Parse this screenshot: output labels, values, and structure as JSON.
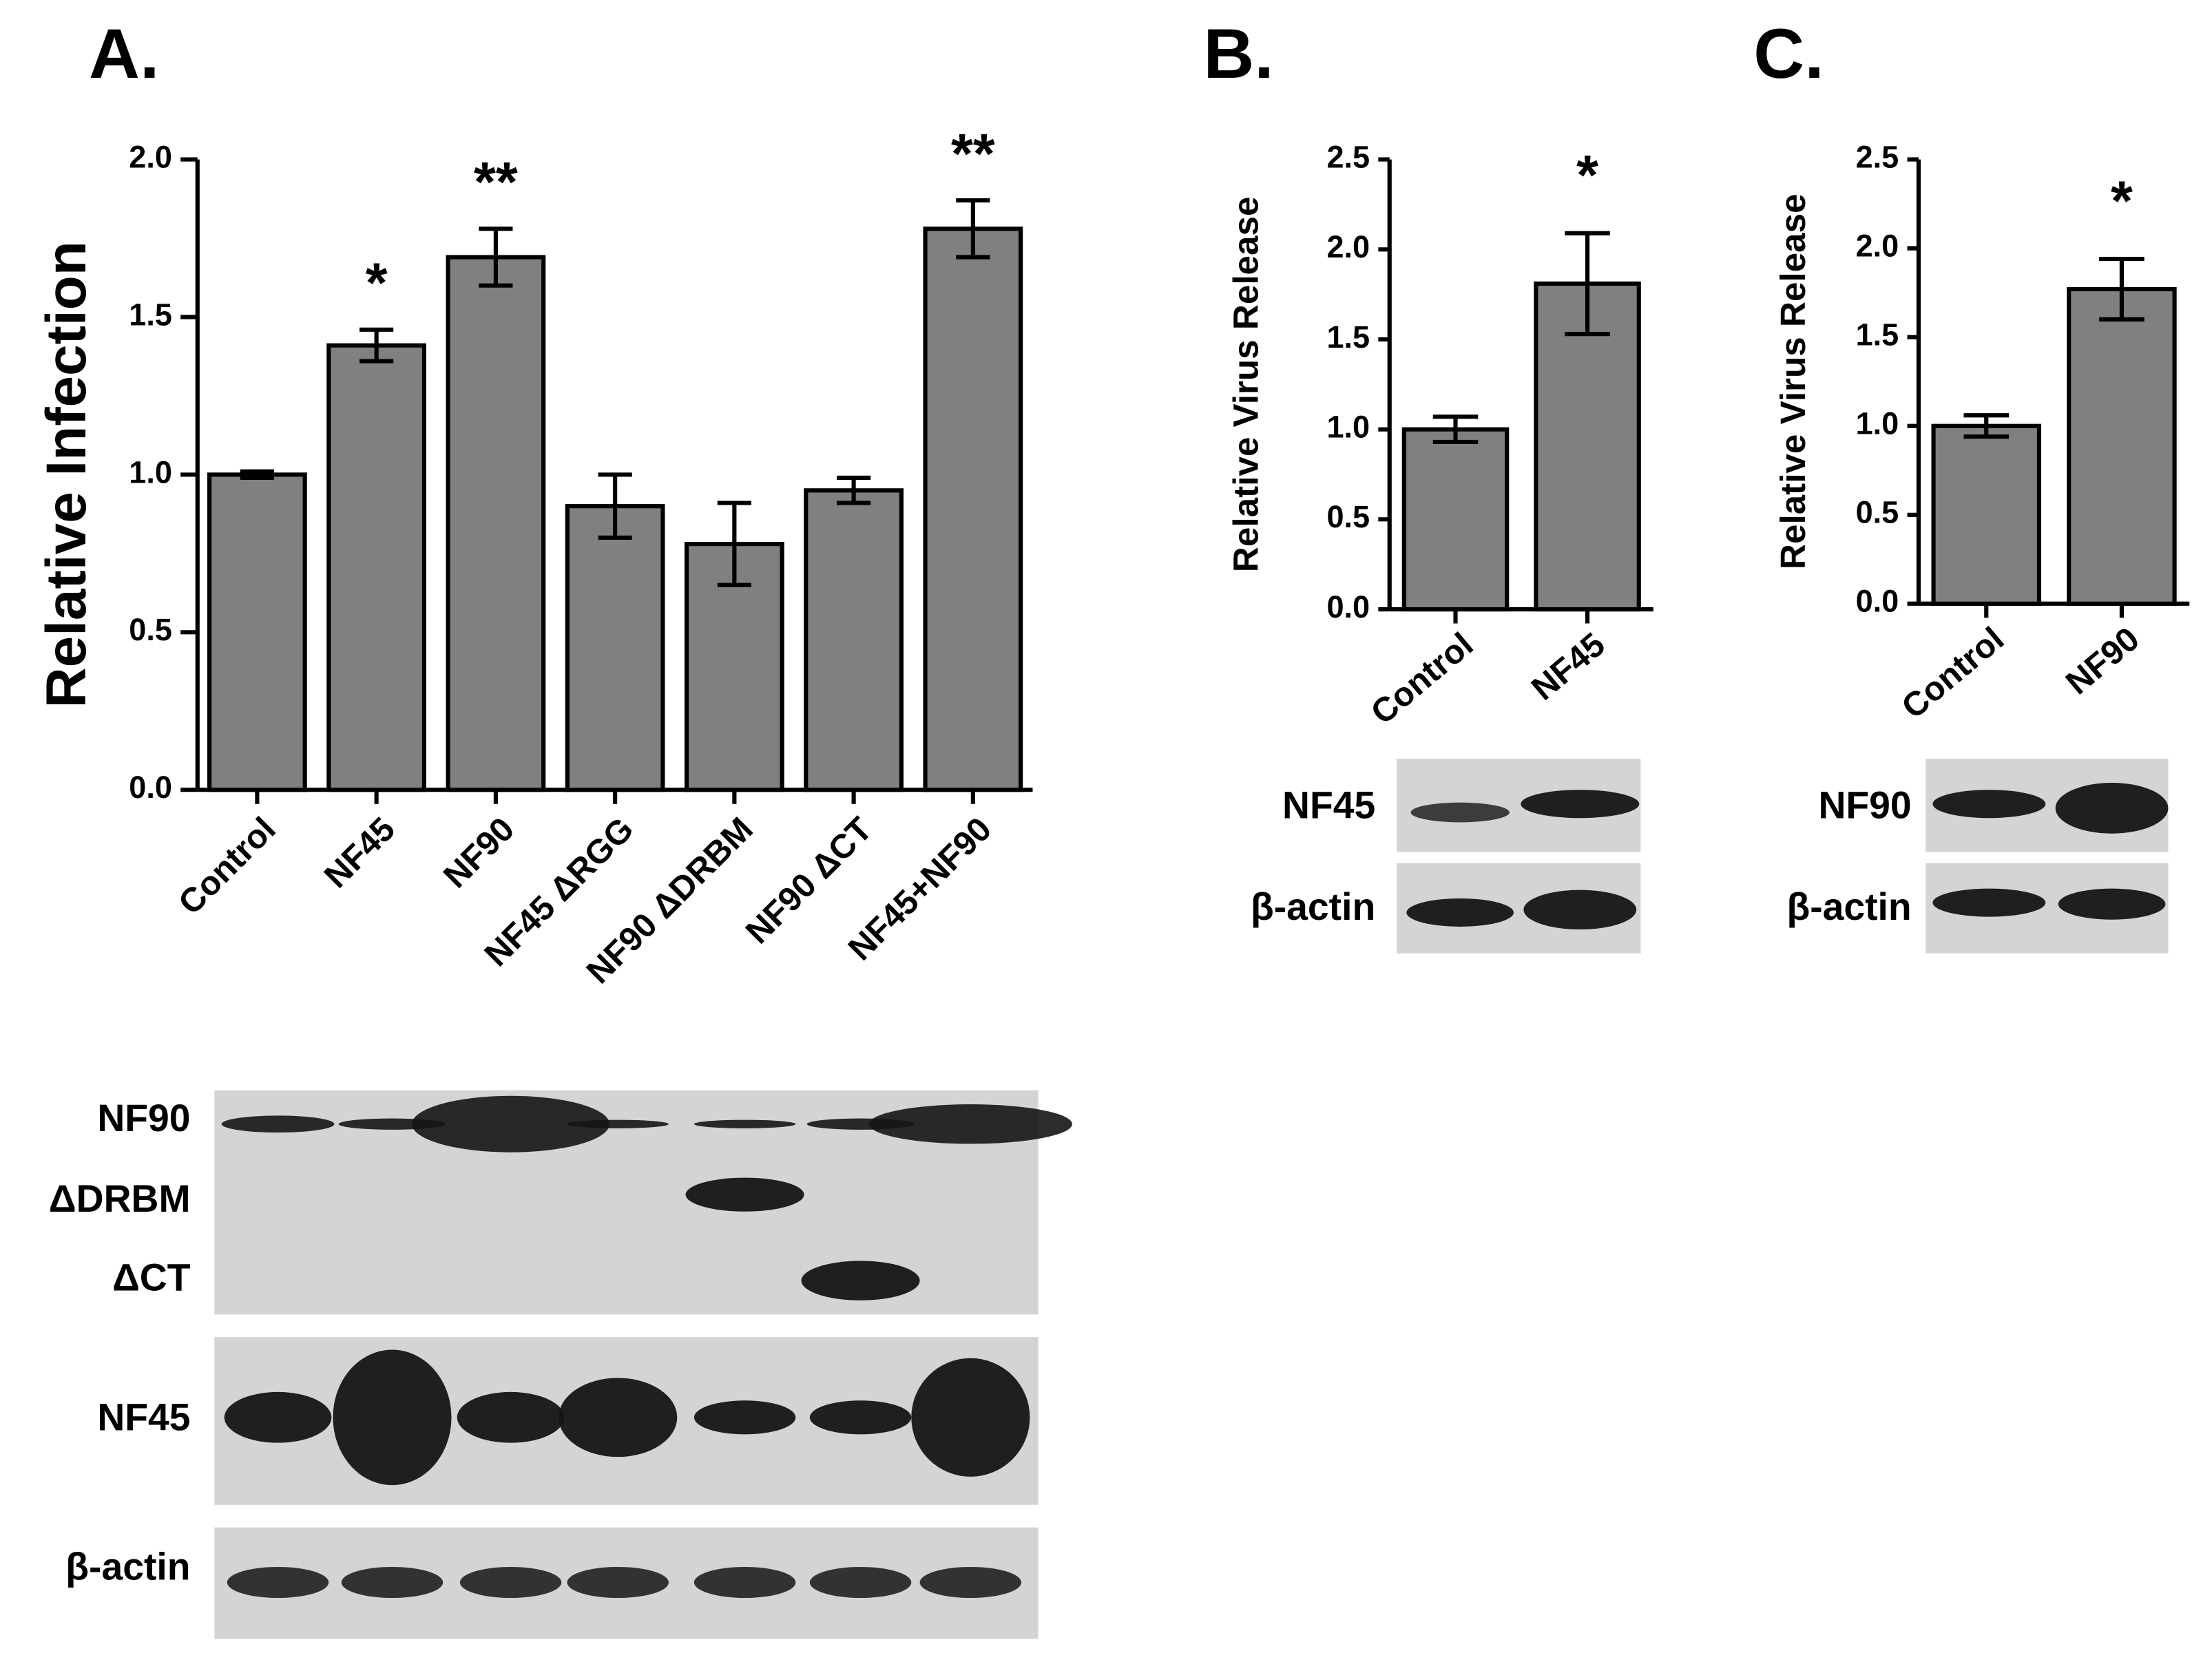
{
  "chart_data": [
    {
      "type": "bar",
      "panel": "A.",
      "ylabel": "Relative Infection",
      "categories": [
        "Control",
        "NF45",
        "NF90",
        "NF45 ΔRGG",
        "NF90 ΔDRBM",
        "NF90 ΔCT",
        "NF45+NF90"
      ],
      "values": [
        1.0,
        1.41,
        1.69,
        0.9,
        0.78,
        0.95,
        1.78
      ],
      "errors": [
        0.01,
        0.05,
        0.09,
        0.1,
        0.13,
        0.04,
        0.09
      ],
      "annotations": [
        null,
        "*",
        "**",
        null,
        null,
        null,
        "**"
      ],
      "color": "#808080",
      "ylim": [
        0,
        2
      ],
      "yticks": [
        {
          "value": 0,
          "label": "0.0"
        },
        0.5,
        {
          "value": 1,
          "label": "1.0"
        },
        1.5,
        {
          "value": 2,
          "label": "2.0"
        }
      ]
    },
    {
      "type": "bar",
      "panel": "B.",
      "ylabel": "Relative Virus Release",
      "categories": [
        "Control",
        "NF45"
      ],
      "values": [
        1.0,
        1.81
      ],
      "errors": [
        0.07,
        0.28
      ],
      "annotations": [
        null,
        "*"
      ],
      "color": "#808080",
      "ylim": [
        0,
        2.5
      ],
      "yticks": [
        {
          "value": 0,
          "label": "0.0"
        },
        0.5,
        {
          "value": 1,
          "label": "1.0"
        },
        1.5,
        {
          "value": 2,
          "label": "2.0"
        },
        2.5
      ]
    },
    {
      "type": "bar",
      "panel": "C.",
      "ylabel": "Relative Virus Release",
      "categories": [
        "Control",
        "NF90"
      ],
      "values": [
        1.0,
        1.77
      ],
      "errors": [
        0.06,
        0.17
      ],
      "annotations": [
        null,
        "*"
      ],
      "color": "#808080",
      "ylim": [
        0,
        2.5
      ],
      "yticks": [
        {
          "value": 0,
          "label": "0.0"
        },
        0.5,
        {
          "value": 1,
          "label": "1.0"
        },
        1.5,
        {
          "value": 2,
          "label": "2.0"
        },
        2.5
      ]
    }
  ],
  "blots": {
    "a": [
      "NF90",
      "ΔDRBM",
      "ΔCT",
      "NF45",
      "β-actin"
    ],
    "b": [
      "NF45",
      "β-actin"
    ],
    "c": [
      "NF90",
      "β-actin"
    ]
  }
}
